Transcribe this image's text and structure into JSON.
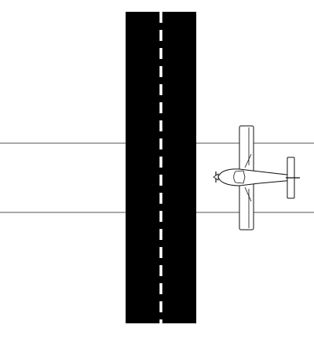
{
  "diagram": {
    "colors": {
      "background": "#ffffff",
      "runway": "#000000",
      "centerline": "#ffffff",
      "road_line": "#555555",
      "aircraft_fill": "#ffffff",
      "aircraft_stroke": "#111111"
    },
    "elements": [
      "runway",
      "runway-centerline",
      "crossing-road-edges",
      "aircraft-top-view"
    ]
  }
}
